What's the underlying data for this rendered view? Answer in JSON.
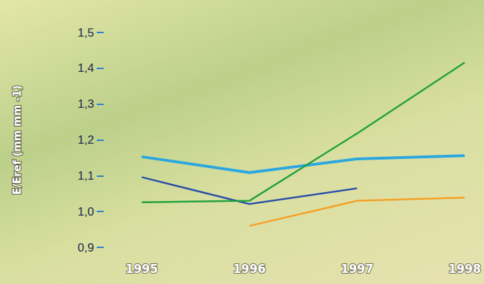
{
  "chart_data": {
    "type": "line",
    "y_label": "E/Eref (mm mm -1)",
    "categories": [
      "1995",
      "1996",
      "1997",
      "1998"
    ],
    "series": [
      {
        "color": "#2aa7e0",
        "values": [
          1.153,
          1.109,
          1.147,
          1.156
        ]
      },
      {
        "color": "#2a4fa8",
        "values": [
          1.096,
          1.021,
          1.065,
          null
        ]
      },
      {
        "color": "#1fa03c",
        "values": [
          1.026,
          1.03,
          1.218,
          1.416
        ]
      },
      {
        "color": "#f5a023",
        "values": [
          null,
          0.96,
          1.03,
          1.039
        ]
      }
    ],
    "ylim": [
      0.9,
      1.5
    ],
    "yticks": [
      {
        "value": 0.9,
        "label": "0,9"
      },
      {
        "value": 1.0,
        "label": "1,0"
      },
      {
        "value": 1.1,
        "label": "1,1"
      },
      {
        "value": 1.2,
        "label": "1,2"
      },
      {
        "value": 1.3,
        "label": "1,3"
      },
      {
        "value": 1.4,
        "label": "1,4"
      },
      {
        "value": 1.5,
        "label": "1,5"
      }
    ],
    "grid": false
  }
}
